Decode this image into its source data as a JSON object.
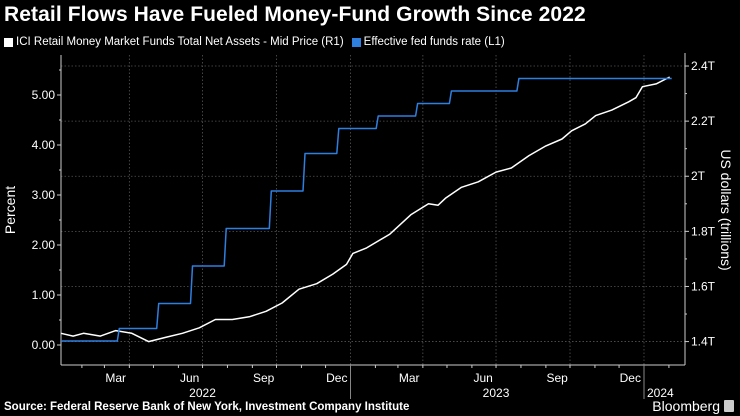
{
  "chart_data": {
    "type": "line",
    "title": "Retail Flows Have Fueled Money-Fund Growth Since 2022",
    "source": "Source: Federal Reserve Bank of New York, Investment Company Institute",
    "brand": "Bloomberg",
    "ylabel_left": "Percent",
    "ylabel_right": "US dollars (trillions)",
    "ylim_left": [
      -0.4,
      5.8
    ],
    "ylim_right": [
      1.315,
      2.44
    ],
    "xlim": [
      "2022-01-06",
      "2024-02-21"
    ],
    "left_ticks": [
      "0.00",
      "1.00",
      "2.00",
      "3.00",
      "4.00",
      "5.00"
    ],
    "right_ticks": [
      "1.4T",
      "1.6T",
      "1.8T",
      "2T",
      "2.2T",
      "2.4T"
    ],
    "x_month_labels": [
      {
        "label": "Mar",
        "date": "2022-03-15"
      },
      {
        "label": "Jun",
        "date": "2022-06-15"
      },
      {
        "label": "Sep",
        "date": "2022-09-15"
      },
      {
        "label": "Dec",
        "date": "2022-12-15"
      },
      {
        "label": "Mar",
        "date": "2023-03-15"
      },
      {
        "label": "Jun",
        "date": "2023-06-15"
      },
      {
        "label": "Sep",
        "date": "2023-09-15"
      },
      {
        "label": "Dec",
        "date": "2023-12-15"
      }
    ],
    "x_year_labels": [
      {
        "label": "2022",
        "date": "2022-07-01"
      },
      {
        "label": "2023",
        "date": "2023-07-01"
      },
      {
        "label": "2024",
        "date": "2024-01-01"
      }
    ],
    "grid": true,
    "legend_position": "top-left",
    "series": [
      {
        "name": "ICI Retail Money Market Funds Total Net Assets - Mid Price (R1)",
        "axis": "right",
        "color": "#ffffff",
        "points": [
          [
            "2022-01-06",
            1.43
          ],
          [
            "2022-01-21",
            1.42
          ],
          [
            "2022-02-03",
            1.43
          ],
          [
            "2022-02-24",
            1.42
          ],
          [
            "2022-03-15",
            1.44
          ],
          [
            "2022-04-04",
            1.43
          ],
          [
            "2022-04-25",
            1.4
          ],
          [
            "2022-05-16",
            1.415
          ],
          [
            "2022-06-06",
            1.43
          ],
          [
            "2022-06-27",
            1.45
          ],
          [
            "2022-07-17",
            1.48
          ],
          [
            "2022-08-07",
            1.48
          ],
          [
            "2022-08-28",
            1.49
          ],
          [
            "2022-09-18",
            1.51
          ],
          [
            "2022-10-08",
            1.54
          ],
          [
            "2022-10-29",
            1.59
          ],
          [
            "2022-11-20",
            1.61
          ],
          [
            "2022-12-10",
            1.645
          ],
          [
            "2022-12-27",
            1.68
          ],
          [
            "2023-01-04",
            1.72
          ],
          [
            "2023-01-21",
            1.74
          ],
          [
            "2023-02-19",
            1.79
          ],
          [
            "2023-03-17",
            1.86
          ],
          [
            "2023-04-08",
            1.9
          ],
          [
            "2023-04-20",
            1.895
          ],
          [
            "2023-04-29",
            1.92
          ],
          [
            "2023-05-19",
            1.96
          ],
          [
            "2023-06-09",
            1.98
          ],
          [
            "2023-07-01",
            2.015
          ],
          [
            "2023-07-20",
            2.03
          ],
          [
            "2023-08-11",
            2.075
          ],
          [
            "2023-09-01",
            2.11
          ],
          [
            "2023-09-21",
            2.135
          ],
          [
            "2023-10-03",
            2.165
          ],
          [
            "2023-10-20",
            2.19
          ],
          [
            "2023-11-02",
            2.22
          ],
          [
            "2023-11-22",
            2.24
          ],
          [
            "2023-12-13",
            2.27
          ],
          [
            "2023-12-22",
            2.285
          ],
          [
            "2023-12-30",
            2.325
          ],
          [
            "2024-01-16",
            2.335
          ],
          [
            "2024-02-02",
            2.36
          ]
        ]
      },
      {
        "name": "Effective fed funds rate (L1)",
        "axis": "left",
        "color": "#2f7fe0",
        "step": true,
        "points": [
          [
            "2022-01-06",
            0.08
          ],
          [
            "2022-03-17",
            0.33
          ],
          [
            "2022-05-05",
            0.83
          ],
          [
            "2022-06-16",
            1.58
          ],
          [
            "2022-07-28",
            2.33
          ],
          [
            "2022-09-22",
            3.08
          ],
          [
            "2022-11-03",
            3.83
          ],
          [
            "2022-12-15",
            4.33
          ],
          [
            "2023-02-02",
            4.58
          ],
          [
            "2023-03-23",
            4.83
          ],
          [
            "2023-05-04",
            5.08
          ],
          [
            "2023-07-27",
            5.33
          ],
          [
            "2024-02-02",
            5.33
          ]
        ]
      }
    ]
  }
}
